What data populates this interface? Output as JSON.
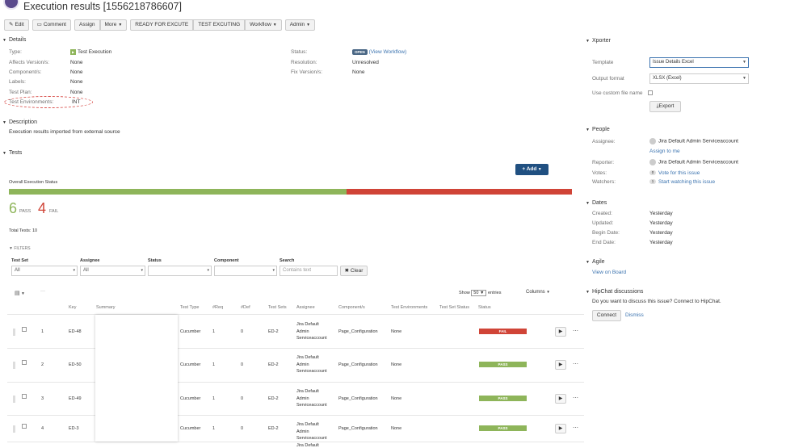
{
  "header": {
    "title": "Execution results [1556218786607]"
  },
  "toolbar": {
    "edit": "Edit",
    "comment": "Comment",
    "assign": "Assign",
    "more": "More",
    "ready": "READY FOR EXCUTE",
    "testexec": "TEST EXCUTING",
    "workflow": "Workflow",
    "admin": "Admin"
  },
  "details": {
    "heading": "Details",
    "type_label": "Type:",
    "type_value": "Test Execution",
    "affects_label": "Affects Version/s:",
    "affects_value": "None",
    "component_label": "Component/s:",
    "component_value": "None",
    "labels_label": "Labels:",
    "labels_value": "None",
    "plan_label": "Test Plan:",
    "plan_value": "None",
    "env_label": "Test Environments:",
    "env_value": "INT",
    "status_label": "Status:",
    "status_badge": "OPEN",
    "status_link": "(View Workflow)",
    "resolution_label": "Resolution:",
    "resolution_value": "Unresolved",
    "fix_label": "Fix Version/s:",
    "fix_value": "None"
  },
  "description": {
    "heading": "Description",
    "text": "Execution results imported from external source"
  },
  "tests": {
    "heading": "Tests",
    "add_button": "Add",
    "overall": "Overall Execution Status",
    "pass_count": "6",
    "pass_label": "PASS",
    "fail_count": "4",
    "fail_label": "FAIL",
    "pass_fraction": 0.6,
    "total": "Total Tests: 10",
    "filters": "FILTERS",
    "filter_testset": "Test Set",
    "filter_testset_value": "All",
    "filter_assignee": "Assignee",
    "filter_assignee_value": "All",
    "filter_status": "Status",
    "filter_component": "Component",
    "filter_search": "Search",
    "filter_search_placeholder": "Contains text",
    "clear": "Clear",
    "show": "Show",
    "show_value": "50",
    "entries": "entries",
    "columns": "Columns",
    "ellipsis": "···",
    "headers": [
      "Key",
      "Summary",
      "Test Type",
      "#Req",
      "#Def",
      "Test Sets",
      "Assignee",
      "Component/s",
      "Test Environments",
      "Test Set Status",
      "Status"
    ],
    "rows": [
      {
        "n": "1",
        "key": "ED-48",
        "type": "Cucumber",
        "req": "1",
        "def": "0",
        "sets": "ED-2",
        "assignee": [
          "Jira Default",
          "Admin",
          "Serviceaccount"
        ],
        "comp": "Page_Configuration",
        "env": "None",
        "status": "FAIL"
      },
      {
        "n": "2",
        "key": "ED-50",
        "type": "Cucumber",
        "req": "1",
        "def": "0",
        "sets": "ED-2",
        "assignee": [
          "Jira Default",
          "Admin",
          "Serviceaccount"
        ],
        "comp": "Page_Configuration",
        "env": "None",
        "status": "PASS"
      },
      {
        "n": "3",
        "key": "ED-49",
        "type": "Cucumber",
        "req": "1",
        "def": "0",
        "sets": "ED-2",
        "assignee": [
          "Jira Default",
          "Admin",
          "Serviceaccount"
        ],
        "comp": "Page_Configuration",
        "env": "None",
        "status": "PASS"
      },
      {
        "n": "4",
        "key": "ED-3",
        "type": "Cucumber",
        "req": "1",
        "def": "0",
        "sets": "ED-2",
        "assignee": [
          "Jira Default",
          "Admin",
          "Serviceaccount"
        ],
        "comp": "Page_Configuration",
        "env": "None",
        "status": "PASS"
      }
    ],
    "partial_row_assignee": "Jira Default"
  },
  "xporter": {
    "heading": "Xporter",
    "template_label": "Template",
    "template_value": "Issue Details Excel",
    "format_label": "Output format",
    "format_value": "XLSX (Excel)",
    "custom_label": "Use custom file name",
    "export": "Export"
  },
  "people": {
    "heading": "People",
    "assignee_label": "Assignee:",
    "assignee_value": "Jira Default Admin Serviceaccount",
    "assign_me": "Assign to me",
    "reporter_label": "Reporter:",
    "reporter_value": "Jira Default Admin Serviceaccount",
    "votes_label": "Votes:",
    "votes_count": "0",
    "votes_link": "Vote for this issue",
    "watchers_label": "Watchers:",
    "watchers_count": "1",
    "watchers_link": "Start watching this issue"
  },
  "dates": {
    "heading": "Dates",
    "created_label": "Created:",
    "created_value": "Yesterday",
    "updated_label": "Updated:",
    "updated_value": "Yesterday",
    "begin_label": "Begin Date:",
    "begin_value": "Yesterday",
    "end_label": "End Date:",
    "end_value": "Yesterday"
  },
  "agile": {
    "heading": "Agile",
    "link": "View on Board"
  },
  "hipchat": {
    "heading": "HipChat discussions",
    "text": "Do you want to discuss this issue? Connect to HipChat.",
    "connect": "Connect",
    "dismiss": "Dismiss"
  },
  "colors": {
    "pass": "#8eb55a",
    "fail": "#d04437",
    "link": "#3b73af",
    "primary": "#205081"
  }
}
